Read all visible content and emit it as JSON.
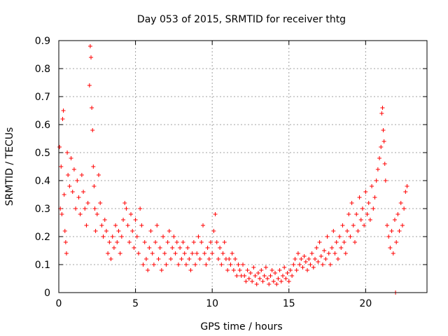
{
  "chart_data": {
    "type": "scatter",
    "title": "Day 053 of 2015, SRMTID for receiver thtg",
    "xlabel": "GPS time / hours",
    "ylabel": "SRMTID / TECUs",
    "xlim": [
      0,
      24
    ],
    "ylim": [
      0,
      0.9
    ],
    "xticks": [
      0,
      5,
      10,
      15,
      20
    ],
    "xtick_labels": [
      "0",
      "5",
      "10",
      "15",
      "20"
    ],
    "yticks": [
      0,
      0.1,
      0.2,
      0.3,
      0.4,
      0.5,
      0.6,
      0.7,
      0.8,
      0.9
    ],
    "ytick_labels": [
      "0",
      "0.1",
      "0.2",
      "0.3",
      "0.4",
      "0.5",
      "0.6",
      "0.7",
      "0.8",
      "0.9"
    ],
    "grid": true,
    "marker": "+",
    "marker_color": "#ff0000",
    "series": [
      {
        "name": "thtg",
        "points": [
          [
            0.05,
            0.52
          ],
          [
            0.1,
            0.3
          ],
          [
            0.15,
            0.45
          ],
          [
            0.2,
            0.28
          ],
          [
            0.25,
            0.62
          ],
          [
            0.3,
            0.65
          ],
          [
            0.35,
            0.35
          ],
          [
            0.4,
            0.22
          ],
          [
            0.45,
            0.18
          ],
          [
            0.5,
            0.14
          ],
          [
            0.55,
            0.5
          ],
          [
            0.6,
            0.42
          ],
          [
            0.7,
            0.38
          ],
          [
            0.8,
            0.48
          ],
          [
            0.9,
            0.36
          ],
          [
            1.0,
            0.44
          ],
          [
            1.1,
            0.3
          ],
          [
            1.2,
            0.4
          ],
          [
            1.3,
            0.34
          ],
          [
            1.4,
            0.28
          ],
          [
            1.5,
            0.42
          ],
          [
            1.6,
            0.36
          ],
          [
            1.7,
            0.3
          ],
          [
            1.8,
            0.24
          ],
          [
            1.9,
            0.32
          ],
          [
            2.0,
            0.74
          ],
          [
            2.05,
            0.88
          ],
          [
            2.1,
            0.84
          ],
          [
            2.15,
            0.66
          ],
          [
            2.2,
            0.58
          ],
          [
            2.25,
            0.45
          ],
          [
            2.3,
            0.38
          ],
          [
            2.35,
            0.3
          ],
          [
            2.4,
            0.22
          ],
          [
            2.5,
            0.28
          ],
          [
            2.6,
            0.42
          ],
          [
            2.7,
            0.32
          ],
          [
            2.8,
            0.24
          ],
          [
            2.9,
            0.2
          ],
          [
            3.0,
            0.26
          ],
          [
            3.1,
            0.22
          ],
          [
            3.2,
            0.14
          ],
          [
            3.3,
            0.18
          ],
          [
            3.4,
            0.12
          ],
          [
            3.5,
            0.2
          ],
          [
            3.6,
            0.16
          ],
          [
            3.7,
            0.24
          ],
          [
            3.8,
            0.18
          ],
          [
            3.9,
            0.22
          ],
          [
            4.0,
            0.14
          ],
          [
            4.1,
            0.2
          ],
          [
            4.2,
            0.26
          ],
          [
            4.3,
            0.32
          ],
          [
            4.4,
            0.3
          ],
          [
            4.5,
            0.24
          ],
          [
            4.6,
            0.18
          ],
          [
            4.7,
            0.28
          ],
          [
            4.8,
            0.22
          ],
          [
            4.9,
            0.16
          ],
          [
            5.0,
            0.26
          ],
          [
            5.1,
            0.2
          ],
          [
            5.2,
            0.14
          ],
          [
            5.3,
            0.3
          ],
          [
            5.4,
            0.24
          ],
          [
            5.5,
            0.1
          ],
          [
            5.6,
            0.18
          ],
          [
            5.7,
            0.12
          ],
          [
            5.8,
            0.08
          ],
          [
            5.9,
            0.16
          ],
          [
            6.0,
            0.22
          ],
          [
            6.1,
            0.14
          ],
          [
            6.2,
            0.1
          ],
          [
            6.3,
            0.18
          ],
          [
            6.4,
            0.24
          ],
          [
            6.5,
            0.12
          ],
          [
            6.6,
            0.16
          ],
          [
            6.7,
            0.08
          ],
          [
            6.8,
            0.2
          ],
          [
            6.9,
            0.14
          ],
          [
            7.0,
            0.1
          ],
          [
            7.1,
            0.18
          ],
          [
            7.2,
            0.22
          ],
          [
            7.3,
            0.12
          ],
          [
            7.4,
            0.16
          ],
          [
            7.5,
            0.2
          ],
          [
            7.6,
            0.14
          ],
          [
            7.7,
            0.18
          ],
          [
            7.8,
            0.1
          ],
          [
            7.9,
            0.16
          ],
          [
            8.0,
            0.12
          ],
          [
            8.1,
            0.18
          ],
          [
            8.2,
            0.14
          ],
          [
            8.3,
            0.1
          ],
          [
            8.4,
            0.16
          ],
          [
            8.5,
            0.12
          ],
          [
            8.6,
            0.08
          ],
          [
            8.7,
            0.14
          ],
          [
            8.8,
            0.18
          ],
          [
            8.9,
            0.1
          ],
          [
            9.0,
            0.14
          ],
          [
            9.1,
            0.2
          ],
          [
            9.2,
            0.12
          ],
          [
            9.3,
            0.18
          ],
          [
            9.4,
            0.24
          ],
          [
            9.5,
            0.14
          ],
          [
            9.6,
            0.1
          ],
          [
            9.7,
            0.16
          ],
          [
            9.8,
            0.12
          ],
          [
            9.9,
            0.18
          ],
          [
            10.0,
            0.14
          ],
          [
            10.1,
            0.22
          ],
          [
            10.2,
            0.28
          ],
          [
            10.3,
            0.18
          ],
          [
            10.4,
            0.12
          ],
          [
            10.5,
            0.16
          ],
          [
            10.6,
            0.1
          ],
          [
            10.7,
            0.14
          ],
          [
            10.8,
            0.18
          ],
          [
            10.9,
            0.12
          ],
          [
            11.0,
            0.08
          ],
          [
            11.1,
            0.12
          ],
          [
            11.2,
            0.1
          ],
          [
            11.3,
            0.14
          ],
          [
            11.4,
            0.08
          ],
          [
            11.5,
            0.12
          ],
          [
            11.6,
            0.06
          ],
          [
            11.7,
            0.1
          ],
          [
            11.8,
            0.08
          ],
          [
            11.9,
            0.06
          ],
          [
            12.0,
            0.1
          ],
          [
            12.1,
            0.06
          ],
          [
            12.2,
            0.04
          ],
          [
            12.3,
            0.08
          ],
          [
            12.4,
            0.05
          ],
          [
            12.5,
            0.07
          ],
          [
            12.6,
            0.04
          ],
          [
            12.7,
            0.09
          ],
          [
            12.8,
            0.06
          ],
          [
            12.9,
            0.03
          ],
          [
            13.0,
            0.07
          ],
          [
            13.1,
            0.05
          ],
          [
            13.2,
            0.08
          ],
          [
            13.3,
            0.04
          ],
          [
            13.4,
            0.06
          ],
          [
            13.5,
            0.09
          ],
          [
            13.6,
            0.05
          ],
          [
            13.7,
            0.03
          ],
          [
            13.8,
            0.06
          ],
          [
            13.9,
            0.08
          ],
          [
            14.0,
            0.04
          ],
          [
            14.1,
            0.07
          ],
          [
            14.2,
            0.03
          ],
          [
            14.3,
            0.05
          ],
          [
            14.4,
            0.08
          ],
          [
            14.5,
            0.04
          ],
          [
            14.6,
            0.06
          ],
          [
            14.7,
            0.09
          ],
          [
            14.8,
            0.05
          ],
          [
            14.9,
            0.07
          ],
          [
            15.0,
            0.04
          ],
          [
            15.1,
            0.08
          ],
          [
            15.2,
            0.06
          ],
          [
            15.3,
            0.1
          ],
          [
            15.4,
            0.12
          ],
          [
            15.5,
            0.08
          ],
          [
            15.6,
            0.14
          ],
          [
            15.7,
            0.1
          ],
          [
            15.8,
            0.12
          ],
          [
            15.9,
            0.09
          ],
          [
            16.0,
            0.13
          ],
          [
            16.1,
            0.11
          ],
          [
            16.2,
            0.08
          ],
          [
            16.3,
            0.12
          ],
          [
            16.4,
            0.1
          ],
          [
            16.5,
            0.14
          ],
          [
            16.6,
            0.09
          ],
          [
            16.7,
            0.12
          ],
          [
            16.8,
            0.16
          ],
          [
            16.9,
            0.11
          ],
          [
            17.0,
            0.18
          ],
          [
            17.1,
            0.13
          ],
          [
            17.2,
            0.1
          ],
          [
            17.3,
            0.15
          ],
          [
            17.4,
            0.12
          ],
          [
            17.5,
            0.2
          ],
          [
            17.6,
            0.14
          ],
          [
            17.7,
            0.1
          ],
          [
            17.8,
            0.16
          ],
          [
            17.9,
            0.22
          ],
          [
            18.0,
            0.14
          ],
          [
            18.1,
            0.18
          ],
          [
            18.2,
            0.12
          ],
          [
            18.3,
            0.2
          ],
          [
            18.4,
            0.16
          ],
          [
            18.5,
            0.24
          ],
          [
            18.6,
            0.18
          ],
          [
            18.7,
            0.14
          ],
          [
            18.8,
            0.22
          ],
          [
            18.9,
            0.28
          ],
          [
            19.0,
            0.2
          ],
          [
            19.1,
            0.32
          ],
          [
            19.2,
            0.24
          ],
          [
            19.3,
            0.18
          ],
          [
            19.4,
            0.28
          ],
          [
            19.5,
            0.22
          ],
          [
            19.6,
            0.34
          ],
          [
            19.7,
            0.26
          ],
          [
            19.8,
            0.3
          ],
          [
            19.9,
            0.24
          ],
          [
            20.0,
            0.36
          ],
          [
            20.1,
            0.28
          ],
          [
            20.2,
            0.32
          ],
          [
            20.3,
            0.26
          ],
          [
            20.4,
            0.38
          ],
          [
            20.5,
            0.3
          ],
          [
            20.6,
            0.34
          ],
          [
            20.7,
            0.4
          ],
          [
            20.8,
            0.44
          ],
          [
            20.9,
            0.48
          ],
          [
            21.0,
            0.52
          ],
          [
            21.05,
            0.64
          ],
          [
            21.1,
            0.66
          ],
          [
            21.15,
            0.58
          ],
          [
            21.2,
            0.54
          ],
          [
            21.25,
            0.46
          ],
          [
            21.3,
            0.4
          ],
          [
            21.4,
            0.24
          ],
          [
            21.5,
            0.2
          ],
          [
            21.6,
            0.16
          ],
          [
            21.7,
            0.22
          ],
          [
            21.8,
            0.14
          ],
          [
            21.9,
            0.26
          ],
          [
            22.0,
            0.18
          ],
          [
            22.1,
            0.28
          ],
          [
            22.2,
            0.22
          ],
          [
            22.3,
            0.32
          ],
          [
            22.4,
            0.24
          ],
          [
            22.5,
            0.3
          ],
          [
            22.6,
            0.36
          ],
          [
            22.7,
            0.38
          ],
          [
            21.95,
            0.0
          ]
        ]
      }
    ]
  }
}
